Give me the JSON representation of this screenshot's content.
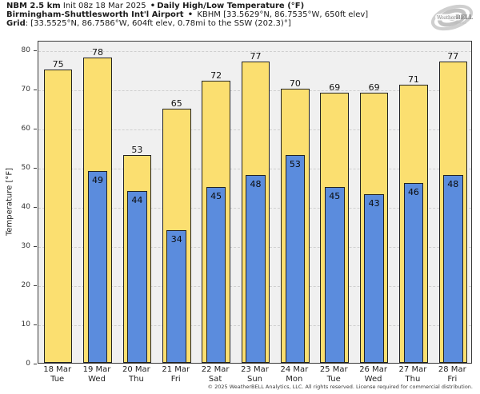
{
  "header": {
    "model": "NBM 2.5 km",
    "init": " Init 08z 18 Mar 2025 ",
    "separator": "•",
    "product": "Daily High/Low Temperature (°F)",
    "station_name": "Birmingham-Shuttlesworth Int'l Airport",
    "station_details": " KBHM [33.5629°N, 86.7535°W, 650ft elev]",
    "grid_label": "Grid",
    "grid_details": ": [33.5525°N, 86.7586°W, 604ft elev, 0.78mi to the SSW (202.3)°]",
    "logo_name": "WeatherBELL",
    "logo_sub": "Analytics LLC"
  },
  "chart_data": {
    "type": "bar",
    "title": "Daily High/Low Temperature (°F)",
    "ylabel": "Temperature [°F]",
    "ylim": [
      0,
      82.5
    ],
    "yticks": [
      0,
      10,
      20,
      30,
      40,
      50,
      60,
      70,
      80
    ],
    "grid": true,
    "legend_position": "none",
    "categories": [
      {
        "date": "18 Mar",
        "day": "Tue"
      },
      {
        "date": "19 Mar",
        "day": "Wed"
      },
      {
        "date": "20 Mar",
        "day": "Thu"
      },
      {
        "date": "21 Mar",
        "day": "Fri"
      },
      {
        "date": "22 Mar",
        "day": "Sat"
      },
      {
        "date": "23 Mar",
        "day": "Sun"
      },
      {
        "date": "24 Mar",
        "day": "Mon"
      },
      {
        "date": "25 Mar",
        "day": "Tue"
      },
      {
        "date": "26 Mar",
        "day": "Wed"
      },
      {
        "date": "27 Mar",
        "day": "Thu"
      },
      {
        "date": "28 Mar",
        "day": "Fri"
      }
    ],
    "series": [
      {
        "name": "Daily High",
        "color": "#fbdf70",
        "values": [
          75,
          78,
          53,
          65,
          72,
          77,
          70,
          69,
          69,
          71,
          77
        ]
      },
      {
        "name": "Daily Low",
        "color": "#5b8cdd",
        "values": [
          null,
          49,
          44,
          34,
          45,
          48,
          53,
          45,
          43,
          46,
          48
        ]
      }
    ]
  },
  "colors": {
    "high_bar": "#fbdf70",
    "low_bar": "#5b8cdd",
    "bar_border": "#232323",
    "plot_background": "#f0f0f0",
    "gridline": "#cfcfcf",
    "logo_gray": "#9a9a9a"
  },
  "footer": {
    "copyright": "© 2025 WeatherBELL Analytics, LLC. All rights reserved. License required for commercial distribution."
  }
}
